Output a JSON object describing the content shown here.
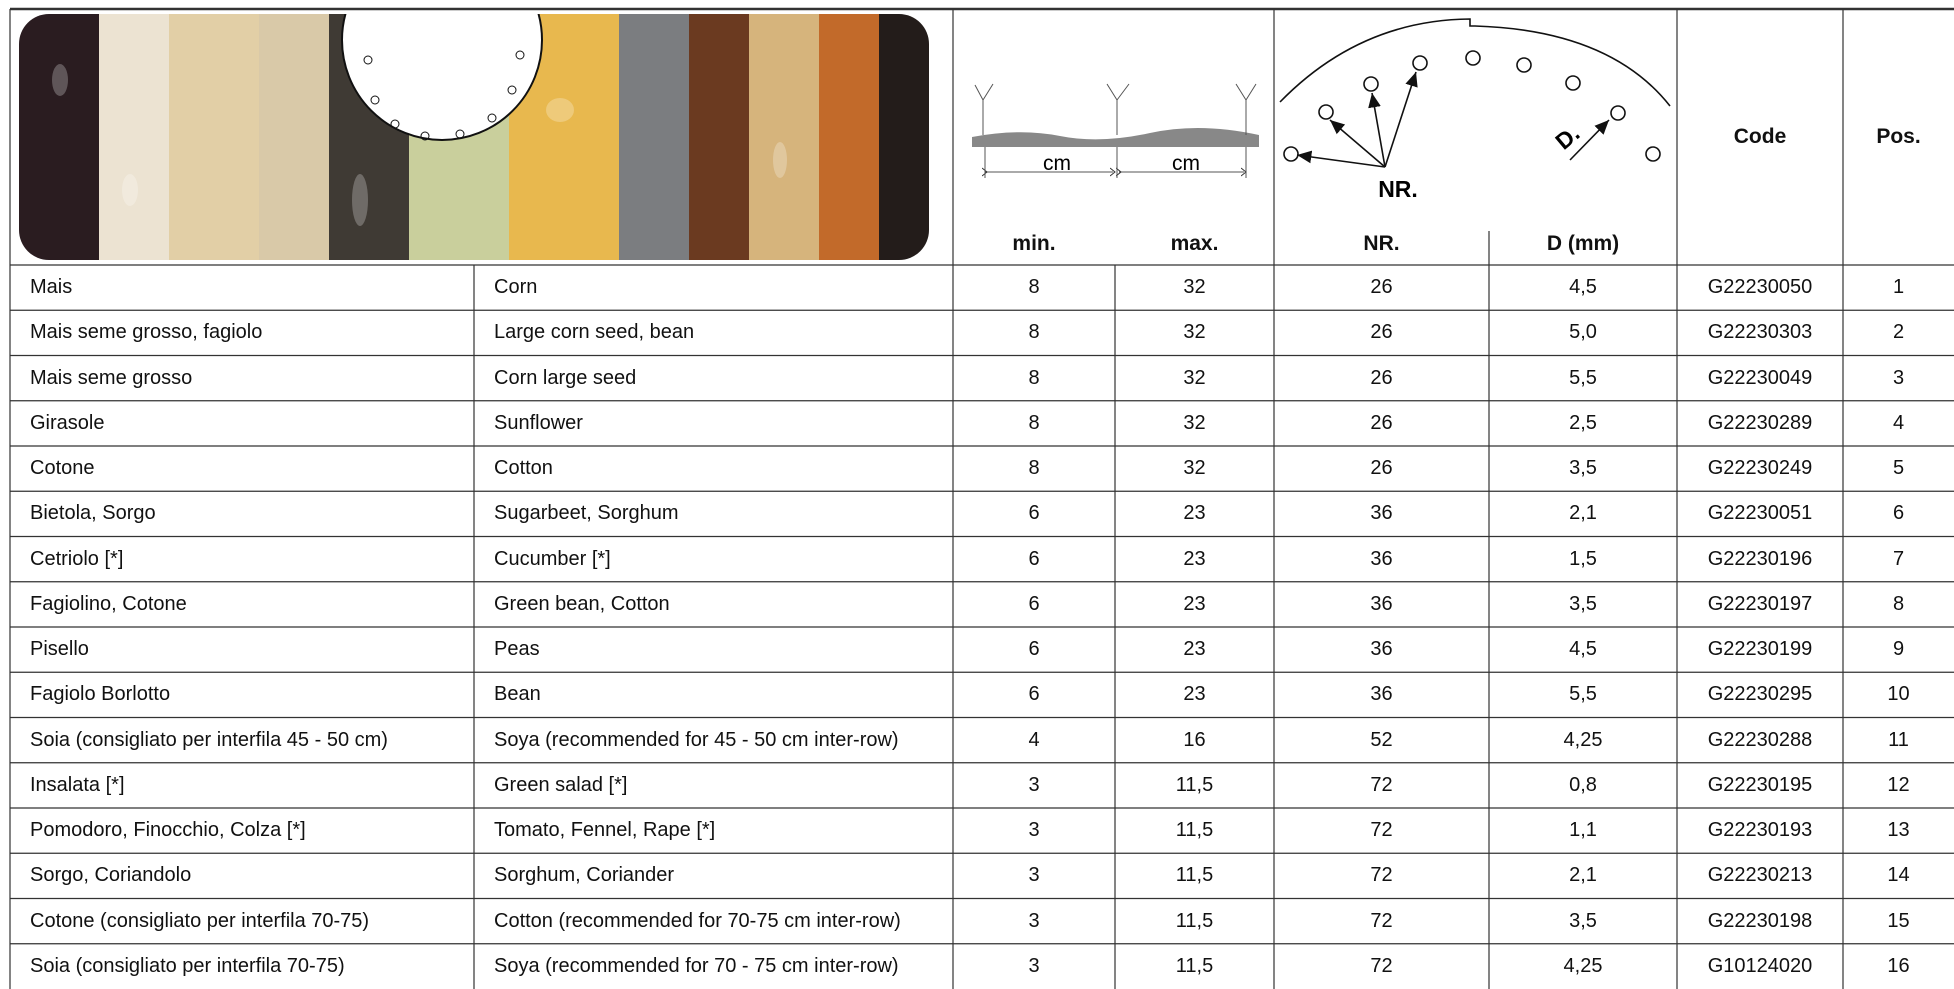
{
  "header": {
    "diagram_labels": {
      "cm_min": "cm",
      "cm_max": "cm",
      "holes": "NR.",
      "diameter": "D."
    },
    "columns": {
      "min": "min.",
      "max": "max.",
      "nr": "NR.",
      "d": "D (mm)",
      "code": "Code",
      "pos": "Pos."
    }
  },
  "table": {
    "rows": [
      [
        "Mais",
        "Corn",
        "8",
        "32",
        "26",
        "4,5",
        "G22230050",
        "1"
      ],
      [
        "Mais seme grosso, fagiolo",
        "Large corn seed, bean",
        "8",
        "32",
        "26",
        "5,0",
        "G22230303",
        "2"
      ],
      [
        "Mais seme grosso",
        "Corn large seed",
        "8",
        "32",
        "26",
        "5,5",
        "G22230049",
        "3"
      ],
      [
        "Girasole",
        "Sunflower",
        "8",
        "32",
        "26",
        "2,5",
        "G22230289",
        "4"
      ],
      [
        "Cotone",
        "Cotton",
        "8",
        "32",
        "26",
        "3,5",
        "G22230249",
        "5"
      ],
      [
        "Bietola, Sorgo",
        "Sugarbeet, Sorghum",
        "6",
        "23",
        "36",
        "2,1",
        "G22230051",
        "6"
      ],
      [
        "Cetriolo [*]",
        "Cucumber [*]",
        "6",
        "23",
        "36",
        "1,5",
        "G22230196",
        "7"
      ],
      [
        "Fagiolino, Cotone",
        "Green bean, Cotton",
        "6",
        "23",
        "36",
        "3,5",
        "G22230197",
        "8"
      ],
      [
        "Pisello",
        "Peas",
        "6",
        "23",
        "36",
        "4,5",
        "G22230199",
        "9"
      ],
      [
        "Fagiolo Borlotto",
        "Bean",
        "6",
        "23",
        "36",
        "5,5",
        "G22230295",
        "10"
      ],
      [
        "Soia (consigliato per interfila 45 - 50 cm)",
        "Soya (recommended for 45 - 50 cm inter-row)",
        "4",
        "16",
        "52",
        "4,25",
        "G22230288",
        "11"
      ],
      [
        "Insalata [*]",
        "Green salad [*]",
        "3",
        "11,5",
        "72",
        "0,8",
        "G22230195",
        "12"
      ],
      [
        "Pomodoro, Finocchio, Colza [*]",
        "Tomato, Fennel, Rape [*]",
        "3",
        "11,5",
        "72",
        "1,1",
        "G22230193",
        "13"
      ],
      [
        "Sorgo, Coriandolo",
        "Sorghum, Coriander",
        "3",
        "11,5",
        "72",
        "2,1",
        "G22230213",
        "14"
      ],
      [
        "Cotone (consigliato per interfila 70-75)",
        "Cotton (recommended for 70-75 cm inter-row)",
        "3",
        "11,5",
        "72",
        "3,5",
        "G22230198",
        "15"
      ],
      [
        "Soia (consigliato per interfila 70-75)",
        "Soya (recommended for 70 - 75 cm inter-row)",
        "3",
        "11,5",
        "72",
        "4,25",
        "G10124020",
        "16"
      ]
    ]
  }
}
